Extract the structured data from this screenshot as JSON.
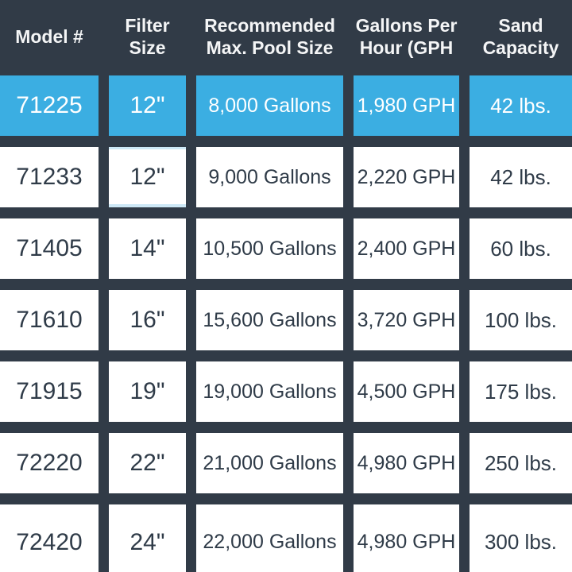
{
  "colors": {
    "background": "#313B47",
    "highlight_row": "#3BAEE2",
    "cell_background": "#FFFFFF",
    "cell_text": "#2F3B48",
    "header_text": "#F4F5F6",
    "pale_highlight_border": "#CDE8F6"
  },
  "chart_data": {
    "type": "table",
    "columns": [
      "Model #",
      "Filter Size",
      "Recommended Max. Pool Size",
      "Gallons Per Hour (GPH",
      "Sand Capacity"
    ],
    "highlighted_row_index": 0,
    "rows": [
      {
        "model": "71225",
        "filter_size": "12\"",
        "pool_size": "8,000 Gallons",
        "gph": "1,980 GPH",
        "sand": "42 lbs."
      },
      {
        "model": "71233",
        "filter_size": "12\"",
        "pool_size": "9,000 Gallons",
        "gph": "2,220 GPH",
        "sand": "42 lbs."
      },
      {
        "model": "71405",
        "filter_size": "14\"",
        "pool_size": "10,500 Gallons",
        "gph": "2,400 GPH",
        "sand": "60 lbs."
      },
      {
        "model": "71610",
        "filter_size": "16\"",
        "pool_size": "15,600 Gallons",
        "gph": "3,720 GPH",
        "sand": "100 lbs."
      },
      {
        "model": "71915",
        "filter_size": "19\"",
        "pool_size": "19,000 Gallons",
        "gph": "4,500 GPH",
        "sand": "175 lbs."
      },
      {
        "model": "72220",
        "filter_size": "22\"",
        "pool_size": "21,000 Gallons",
        "gph": "4,980 GPH",
        "sand": "250 lbs."
      },
      {
        "model": "72420",
        "filter_size": "24\"",
        "pool_size": "22,000 Gallons",
        "gph": "4,980 GPH",
        "sand": "300 lbs."
      }
    ]
  }
}
